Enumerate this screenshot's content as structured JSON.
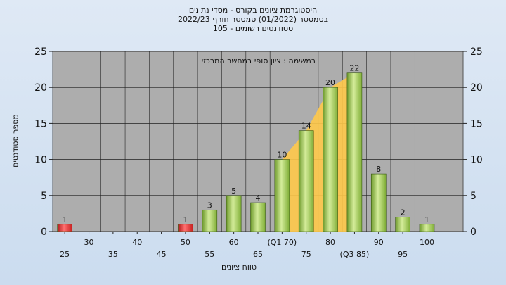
{
  "chart_data": {
    "type": "bar",
    "title_lines": [
      "היסטוגרמת ציונים בקורס - מסדי נתונים",
      "בסמסטר  (01/2022)  סמסטר חורף 2022/23",
      "סטודנטים רשומים - 105"
    ],
    "annotation": "במשימה : ציון סופי במחשב המרכזי",
    "ylabel": "מספר סטודנטים",
    "xlabel": "טווח ציונים",
    "ylim": [
      0,
      25
    ],
    "yticks": [
      0,
      5,
      10,
      15,
      20,
      25
    ],
    "grid": true,
    "x": [
      25,
      30,
      35,
      40,
      45,
      50,
      55,
      60,
      65,
      70,
      75,
      80,
      85,
      90,
      95,
      100
    ],
    "xtick_labels": [
      "25",
      "30",
      "35",
      "40",
      "45",
      "50",
      "55",
      "60",
      "65",
      "(Q1 70)",
      "75",
      "80",
      "(Q3 85)",
      "90",
      "95",
      "100"
    ],
    "values": [
      1,
      0,
      0,
      0,
      0,
      1,
      3,
      5,
      4,
      10,
      14,
      20,
      22,
      8,
      2,
      1
    ],
    "data_labels": [
      "1",
      "",
      "",
      "",
      "",
      "1",
      "3",
      "5",
      "4",
      "10",
      "14",
      "20",
      "22",
      "8",
      "2",
      "1"
    ],
    "failing_bins": [
      25,
      50
    ],
    "quartile_band": {
      "from": 70,
      "to": 85
    },
    "colors": {
      "plot_bg": "#adadad",
      "bar_green": "#8fc040",
      "bar_green_light": "#d4ec9a",
      "bar_red": "#dd2a2a",
      "band_fill": "#ffc94a",
      "page_bg": "#d6e3f2"
    }
  }
}
